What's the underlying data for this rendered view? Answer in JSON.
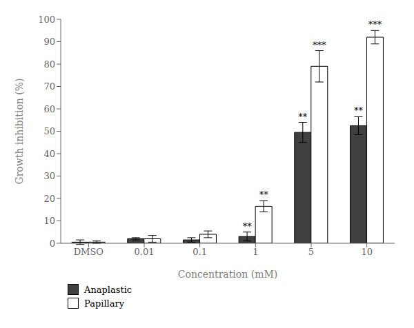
{
  "chart_data": {
    "type": "bar",
    "x_label": "Concentration (mM)",
    "y_label": "Growth inhibition (%)",
    "categories": [
      "DMSO",
      "0.01",
      "0.1",
      "1",
      "5",
      "10"
    ],
    "series": [
      {
        "name": "Anaplastic",
        "color": "#404040",
        "values": [
          0.5,
          2.0,
          1.5,
          3.0,
          49.5,
          52.5
        ],
        "errors": [
          1.0,
          0.5,
          1.0,
          2.0,
          4.5,
          4.0
        ],
        "significance": [
          null,
          null,
          null,
          "**",
          "**",
          "**"
        ]
      },
      {
        "name": "Papillary",
        "color": "#ffffff",
        "values": [
          0.5,
          2.0,
          4.0,
          16.5,
          79.0,
          92.0
        ],
        "errors": [
          0.5,
          1.5,
          1.5,
          2.5,
          7.0,
          3.0
        ],
        "significance": [
          null,
          null,
          null,
          "**",
          "***",
          "***"
        ]
      }
    ],
    "ylim": [
      0,
      100
    ],
    "yticks": [
      0,
      10,
      20,
      30,
      40,
      50,
      60,
      70,
      80,
      90,
      100
    ],
    "grid": false,
    "legend": "bottom"
  }
}
